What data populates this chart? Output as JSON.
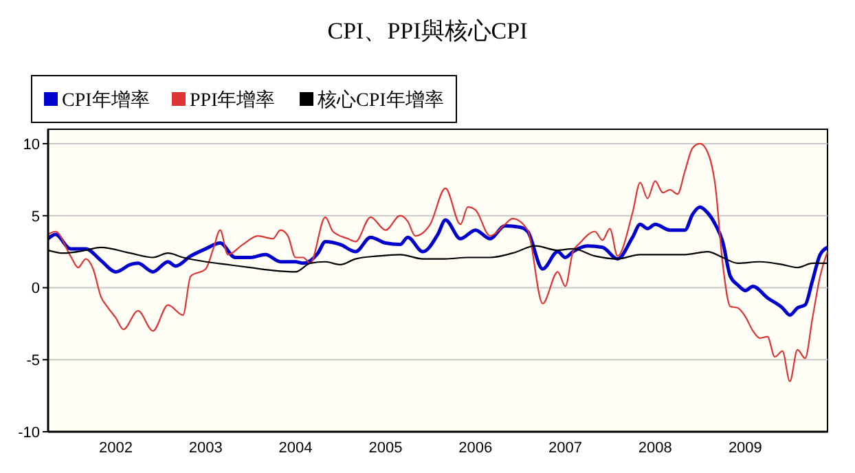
{
  "chart_data": {
    "type": "line",
    "title": "CPI、PPI與核心CPI",
    "legend": "top left",
    "grid": "y",
    "marker": "none",
    "line_style": "solid",
    "xlim": [
      "2001-04",
      "2009-12"
    ],
    "ylim": [
      -10,
      11
    ],
    "yticks": [
      -10,
      -5,
      0,
      5,
      10
    ],
    "xticks": [
      {
        "value": "2002",
        "label": "2002"
      },
      {
        "value": "2003",
        "label": "2003"
      },
      {
        "value": "2004",
        "label": "2004"
      },
      {
        "value": "2005",
        "label": "2005"
      },
      {
        "value": "2006",
        "label": "2006"
      },
      {
        "value": "2007",
        "label": "2007"
      },
      {
        "value": "2008",
        "label": "2008"
      },
      {
        "value": "2009",
        "label": "2009"
      }
    ],
    "series": [
      {
        "name": "CPI年增率",
        "color": "#0000cc",
        "x": [
          "2001-04",
          "2001-05",
          "2001-07",
          "2001-09",
          "2001-11",
          "2002-01",
          "2002-03",
          "2002-04",
          "2002-06",
          "2002-08",
          "2002-09",
          "2002-11",
          "2003-01",
          "2003-03",
          "2003-05",
          "2003-07",
          "2003-09",
          "2003-11",
          "2004-01",
          "2004-02",
          "2004-04",
          "2004-05",
          "2004-07",
          "2004-09",
          "2004-11",
          "2005-01",
          "2005-03",
          "2005-04",
          "2005-06",
          "2005-08",
          "2005-09",
          "2005-11",
          "2006-01",
          "2006-03",
          "2006-05",
          "2006-07",
          "2006-08",
          "2006-10",
          "2006-12",
          "2007-01",
          "2007-02",
          "2007-04",
          "2007-06",
          "2007-08",
          "2007-10",
          "2007-11",
          "2007-12",
          "2008-01",
          "2008-03",
          "2008-05",
          "2008-06",
          "2008-07",
          "2008-08",
          "2008-09",
          "2008-10",
          "2008-11",
          "2008-12",
          "2009-01",
          "2009-02",
          "2009-04",
          "2009-06",
          "2009-07",
          "2009-08",
          "2009-09",
          "2009-10",
          "2009-11",
          "2009-12"
        ],
        "values": [
          3.4,
          3.7,
          2.7,
          2.7,
          1.9,
          1.1,
          1.6,
          1.7,
          1.1,
          1.8,
          1.5,
          2.2,
          2.7,
          3.1,
          2.1,
          2.1,
          2.3,
          1.8,
          1.8,
          1.7,
          2.4,
          3.2,
          3.0,
          2.5,
          3.5,
          3.1,
          3.0,
          3.5,
          2.5,
          3.7,
          4.7,
          3.4,
          4.0,
          3.4,
          4.3,
          4.2,
          3.9,
          1.3,
          2.5,
          2.1,
          2.5,
          2.9,
          2.8,
          2.0,
          3.5,
          4.4,
          4.1,
          4.4,
          4.0,
          4.0,
          5.1,
          5.6,
          5.2,
          4.4,
          3.2,
          0.8,
          0.2,
          -0.2,
          0.1,
          -0.7,
          -1.4,
          -1.9,
          -1.4,
          -1.2,
          0.5,
          2.3,
          2.8
        ]
      },
      {
        "name": "PPI年增率",
        "color": "#dd3333",
        "x": [
          "2001-04",
          "2001-05",
          "2001-07",
          "2001-08",
          "2001-09",
          "2001-10",
          "2001-11",
          "2001-12",
          "2002-01",
          "2002-02",
          "2002-04",
          "2002-06",
          "2002-08",
          "2002-10",
          "2002-11",
          "2003-01",
          "2003-02",
          "2003-03",
          "2003-04",
          "2003-06",
          "2003-08",
          "2003-10",
          "2003-11",
          "2003-12",
          "2004-01",
          "2004-02",
          "2004-03",
          "2004-05",
          "2004-06",
          "2004-08",
          "2004-09",
          "2004-11",
          "2005-01",
          "2005-03",
          "2005-04",
          "2005-05",
          "2005-07",
          "2005-09",
          "2005-11",
          "2005-12",
          "2006-01",
          "2006-03",
          "2006-05",
          "2006-06",
          "2006-08",
          "2006-10",
          "2006-12",
          "2007-01",
          "2007-02",
          "2007-03",
          "2007-05",
          "2007-06",
          "2007-07",
          "2007-08",
          "2007-10",
          "2007-11",
          "2007-12",
          "2008-01",
          "2008-02",
          "2008-03",
          "2008-04",
          "2008-05",
          "2008-06",
          "2008-07",
          "2008-08",
          "2008-09",
          "2008-10",
          "2008-11",
          "2008-12",
          "2009-01",
          "2009-02",
          "2009-03",
          "2009-04",
          "2009-05",
          "2009-06",
          "2009-07",
          "2009-08",
          "2009-09",
          "2009-10",
          "2009-11",
          "2009-12"
        ],
        "values": [
          3.7,
          3.9,
          2.2,
          1.4,
          2.0,
          1.3,
          -0.6,
          -1.4,
          -2.1,
          -2.9,
          -1.6,
          -3.0,
          -1.2,
          -1.9,
          0.8,
          1.3,
          2.7,
          4.0,
          2.3,
          3.0,
          3.6,
          3.4,
          4.0,
          3.6,
          2.1,
          2.1,
          1.7,
          4.9,
          3.9,
          3.4,
          3.2,
          4.9,
          4.0,
          5.0,
          4.6,
          3.6,
          4.4,
          6.9,
          4.4,
          5.6,
          5.4,
          3.6,
          4.4,
          4.8,
          4.0,
          -1.1,
          1.1,
          0.1,
          2.5,
          3.1,
          3.9,
          3.3,
          4.1,
          2.2,
          5.2,
          7.3,
          6.2,
          7.4,
          6.6,
          6.8,
          6.5,
          8.1,
          9.7,
          10.0,
          9.4,
          7.1,
          1.7,
          -1.3,
          -1.4,
          -2.0,
          -3.0,
          -3.5,
          -3.4,
          -4.8,
          -4.4,
          -6.5,
          -4.3,
          -4.9,
          -2.1,
          0.8,
          2.5
        ]
      },
      {
        "name": "核心CPI年增率",
        "color": "#000000",
        "x": [
          "2001-04",
          "2001-06",
          "2001-09",
          "2001-11",
          "2002-03",
          "2002-06",
          "2002-08",
          "2002-10",
          "2003-01",
          "2003-04",
          "2003-07",
          "2003-10",
          "2004-01",
          "2004-03",
          "2004-05",
          "2004-07",
          "2004-09",
          "2004-12",
          "2005-03",
          "2005-06",
          "2005-09",
          "2005-12",
          "2006-03",
          "2006-06",
          "2006-09",
          "2006-12",
          "2007-02",
          "2007-05",
          "2007-08",
          "2007-11",
          "2008-02",
          "2008-05",
          "2008-08",
          "2008-10",
          "2008-12",
          "2009-03",
          "2009-06",
          "2009-08",
          "2009-10",
          "2009-12"
        ],
        "values": [
          2.6,
          2.4,
          2.6,
          2.8,
          2.4,
          2.1,
          2.4,
          2.1,
          1.8,
          1.6,
          1.4,
          1.2,
          1.1,
          1.7,
          1.8,
          1.6,
          2.0,
          2.2,
          2.3,
          2.0,
          2.0,
          2.1,
          2.1,
          2.4,
          2.9,
          2.6,
          2.7,
          2.2,
          2.0,
          2.3,
          2.3,
          2.3,
          2.5,
          2.1,
          1.7,
          1.8,
          1.6,
          1.4,
          1.7,
          1.7
        ]
      }
    ]
  }
}
